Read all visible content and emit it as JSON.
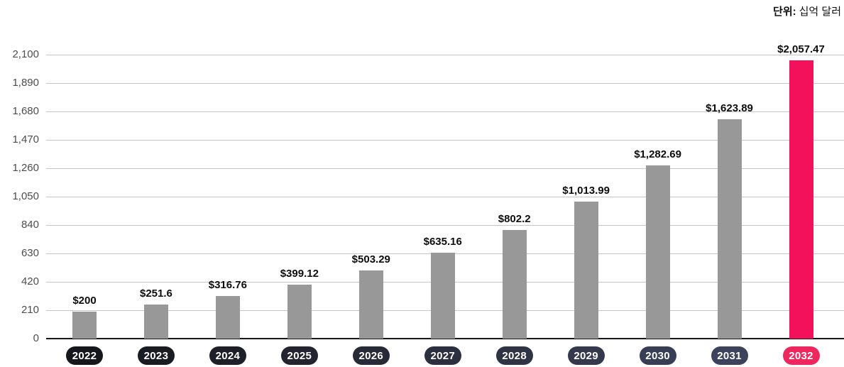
{
  "unit_label": {
    "prefix": "단위:",
    "text": "십억 달러"
  },
  "chart_data": {
    "type": "bar",
    "title": "",
    "xlabel": "",
    "ylabel": "",
    "categories": [
      "2022",
      "2023",
      "2024",
      "2025",
      "2026",
      "2027",
      "2028",
      "2029",
      "2030",
      "2031",
      "2032"
    ],
    "values": [
      200,
      251.6,
      316.76,
      399.12,
      503.29,
      635.16,
      802.2,
      1013.99,
      1282.69,
      1623.89,
      2057.47
    ],
    "value_labels": [
      "$200",
      "$251.6",
      "$316.76",
      "$399.12",
      "$503.29",
      "$635.16",
      "$802.2",
      "$1,013.99",
      "$1,282.69",
      "$1,623.89",
      "$2,057.47"
    ],
    "y_ticks": [
      "2,100",
      "1,890",
      "1,680",
      "1,470",
      "1,260",
      "1,050",
      "840",
      "630",
      "420",
      "210",
      "0"
    ],
    "ylim": [
      0,
      2100
    ],
    "grid": true,
    "legend_position": "none",
    "bar_color": "#989898",
    "highlight_index": 10,
    "highlight_color": "#f2115a",
    "pill_text_color": "#ffffff",
    "pill_colors": [
      "#16171d",
      "#1a1c23",
      "#1e2029",
      "#222530",
      "#272a37",
      "#2b2f3e",
      "#2f3445",
      "#34394c",
      "#383e53",
      "#3c435a",
      "#ee275e"
    ]
  }
}
